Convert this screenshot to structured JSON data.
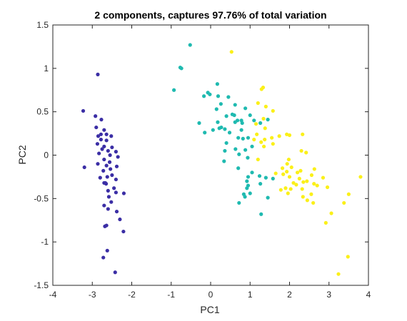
{
  "chart_data": {
    "type": "scatter",
    "title": "2 components, captures 97.76% of total variation",
    "xlabel": "PC1",
    "ylabel": "PC2",
    "xlim": [
      -4,
      4
    ],
    "ylim": [
      -1.5,
      1.5
    ],
    "xticks": [
      -4,
      -3,
      -2,
      -1,
      0,
      1,
      2,
      3,
      4
    ],
    "yticks": [
      -1.5,
      -1,
      -0.5,
      0,
      0.5,
      1,
      1.5
    ],
    "xtick_labels": [
      "-4",
      "-3",
      "-2",
      "-1",
      "0",
      "1",
      "2",
      "3",
      "4"
    ],
    "ytick_labels": [
      "-1.5",
      "-1",
      "-0.5",
      "0",
      "0.5",
      "1",
      "1.5"
    ],
    "grid": false,
    "box": true,
    "series": [
      {
        "color": "#3b2ea5",
        "points": [
          [
            -2.86,
            0.93
          ],
          [
            -3.23,
            0.51
          ],
          [
            -2.92,
            0.45
          ],
          [
            -2.77,
            0.41
          ],
          [
            -2.9,
            0.32
          ],
          [
            -2.7,
            0.29
          ],
          [
            -2.78,
            0.24
          ],
          [
            -2.85,
            0.22
          ],
          [
            -2.64,
            0.24
          ],
          [
            -2.52,
            0.22
          ],
          [
            -2.78,
            0.18
          ],
          [
            -2.64,
            0.17
          ],
          [
            -2.87,
            0.13
          ],
          [
            -2.7,
            0.1
          ],
          [
            -2.5,
            0.09
          ],
          [
            -2.75,
            0.07
          ],
          [
            -2.6,
            0.05
          ],
          [
            -2.4,
            0.04
          ],
          [
            -2.83,
            0.02
          ],
          [
            -2.55,
            0.0
          ],
          [
            -2.35,
            -0.02
          ],
          [
            -2.7,
            -0.05
          ],
          [
            -2.56,
            -0.08
          ],
          [
            -2.86,
            -0.1
          ],
          [
            -3.2,
            -0.14
          ],
          [
            -2.64,
            -0.12
          ],
          [
            -2.38,
            -0.13
          ],
          [
            -2.54,
            -0.16
          ],
          [
            -2.72,
            -0.18
          ],
          [
            -2.5,
            -0.23
          ],
          [
            -2.62,
            -0.25
          ],
          [
            -2.8,
            -0.26
          ],
          [
            -2.4,
            -0.28
          ],
          [
            -2.7,
            -0.32
          ],
          [
            -2.65,
            -0.33
          ],
          [
            -2.67,
            -0.32
          ],
          [
            -2.45,
            -0.38
          ],
          [
            -2.6,
            -0.41
          ],
          [
            -2.4,
            -0.43
          ],
          [
            -2.2,
            -0.44
          ],
          [
            -2.58,
            -0.48
          ],
          [
            -2.52,
            -0.54
          ],
          [
            -2.7,
            -0.58
          ],
          [
            -2.6,
            -0.62
          ],
          [
            -2.38,
            -0.65
          ],
          [
            -2.3,
            -0.74
          ],
          [
            -2.68,
            -0.82
          ],
          [
            -2.64,
            -0.81
          ],
          [
            -2.21,
            -0.88
          ],
          [
            -2.62,
            -1.1
          ],
          [
            -2.72,
            -1.18
          ],
          [
            -2.42,
            -1.35
          ]
        ]
      },
      {
        "color": "#1fbab0",
        "points": [
          [
            -0.52,
            1.27
          ],
          [
            -0.74,
            1.0
          ],
          [
            -0.77,
            1.01
          ],
          [
            -0.93,
            0.75
          ],
          [
            0.17,
            0.82
          ],
          [
            -0.07,
            0.72
          ],
          [
            -0.02,
            0.7
          ],
          [
            -0.17,
            0.68
          ],
          [
            0.19,
            0.68
          ],
          [
            0.45,
            0.67
          ],
          [
            0.26,
            0.59
          ],
          [
            0.62,
            0.58
          ],
          [
            0.88,
            0.54
          ],
          [
            0.15,
            0.53
          ],
          [
            0.55,
            0.47
          ],
          [
            0.6,
            0.46
          ],
          [
            1.0,
            0.46
          ],
          [
            0.4,
            0.45
          ],
          [
            0.68,
            0.4
          ],
          [
            0.78,
            0.4
          ],
          [
            1.1,
            0.4
          ],
          [
            1.45,
            0.41
          ],
          [
            0.18,
            0.38
          ],
          [
            -0.29,
            0.37
          ],
          [
            0.62,
            0.38
          ],
          [
            0.8,
            0.37
          ],
          [
            1.26,
            0.37
          ],
          [
            0.27,
            0.32
          ],
          [
            0.22,
            0.31
          ],
          [
            0.36,
            0.3
          ],
          [
            0.78,
            0.29
          ],
          [
            0.06,
            0.29
          ],
          [
            0.48,
            0.26
          ],
          [
            -0.15,
            0.26
          ],
          [
            0.7,
            0.2
          ],
          [
            0.82,
            0.19
          ],
          [
            0.95,
            0.2
          ],
          [
            0.4,
            0.14
          ],
          [
            1.05,
            0.1
          ],
          [
            0.63,
            0.07
          ],
          [
            0.88,
            0.06
          ],
          [
            0.36,
            0.05
          ],
          [
            0.72,
            0.01
          ],
          [
            0.94,
            -0.03
          ],
          [
            0.34,
            -0.07
          ],
          [
            0.7,
            -0.15
          ],
          [
            1.05,
            -0.2
          ],
          [
            1.24,
            -0.24
          ],
          [
            0.95,
            -0.25
          ],
          [
            1.4,
            -0.26
          ],
          [
            1.58,
            -0.27
          ],
          [
            0.92,
            -0.3
          ],
          [
            1.26,
            -0.33
          ],
          [
            0.95,
            -0.35
          ],
          [
            0.92,
            -0.38
          ],
          [
            0.84,
            -0.45
          ],
          [
            1.0,
            -0.44
          ],
          [
            0.87,
            -0.48
          ],
          [
            1.45,
            -0.49
          ],
          [
            0.72,
            -0.55
          ],
          [
            1.28,
            -0.68
          ]
        ]
      },
      {
        "color": "#fbf019",
        "points": [
          [
            0.53,
            1.19
          ],
          [
            1.33,
            0.78
          ],
          [
            1.29,
            0.76
          ],
          [
            1.2,
            0.6
          ],
          [
            1.4,
            0.56
          ],
          [
            1.58,
            0.51
          ],
          [
            1.34,
            0.42
          ],
          [
            1.15,
            0.36
          ],
          [
            1.38,
            0.31
          ],
          [
            1.17,
            0.24
          ],
          [
            1.1,
            0.18
          ],
          [
            1.93,
            0.24
          ],
          [
            2.0,
            0.23
          ],
          [
            2.33,
            0.24
          ],
          [
            1.74,
            0.22
          ],
          [
            1.55,
            0.2
          ],
          [
            1.37,
            0.18
          ],
          [
            1.28,
            0.15
          ],
          [
            1.58,
            0.13
          ],
          [
            1.35,
            0.1
          ],
          [
            2.3,
            0.05
          ],
          [
            2.42,
            0.03
          ],
          [
            1.2,
            -0.05
          ],
          [
            1.98,
            -0.05
          ],
          [
            1.94,
            -0.1
          ],
          [
            2.05,
            -0.14
          ],
          [
            1.82,
            -0.15
          ],
          [
            2.63,
            -0.16
          ],
          [
            2.28,
            -0.18
          ],
          [
            1.93,
            -0.19
          ],
          [
            2.2,
            -0.2
          ],
          [
            1.65,
            -0.21
          ],
          [
            1.84,
            -0.22
          ],
          [
            2.56,
            -0.23
          ],
          [
            2.0,
            -0.25
          ],
          [
            3.8,
            -0.25
          ],
          [
            2.85,
            -0.26
          ],
          [
            2.25,
            -0.27
          ],
          [
            2.44,
            -0.3
          ],
          [
            2.35,
            -0.31
          ],
          [
            2.1,
            -0.32
          ],
          [
            2.62,
            -0.33
          ],
          [
            2.17,
            -0.34
          ],
          [
            2.7,
            -0.35
          ],
          [
            2.96,
            -0.37
          ],
          [
            1.9,
            -0.38
          ],
          [
            2.03,
            -0.39
          ],
          [
            1.78,
            -0.4
          ],
          [
            2.32,
            -0.39
          ],
          [
            1.96,
            -0.44
          ],
          [
            2.55,
            -0.45
          ],
          [
            3.5,
            -0.45
          ],
          [
            2.34,
            -0.48
          ],
          [
            2.45,
            -0.52
          ],
          [
            3.38,
            -0.55
          ],
          [
            2.6,
            -0.55
          ],
          [
            3.06,
            -0.67
          ],
          [
            2.92,
            -0.78
          ],
          [
            3.48,
            -1.17
          ],
          [
            3.24,
            -1.37
          ]
        ]
      }
    ]
  }
}
